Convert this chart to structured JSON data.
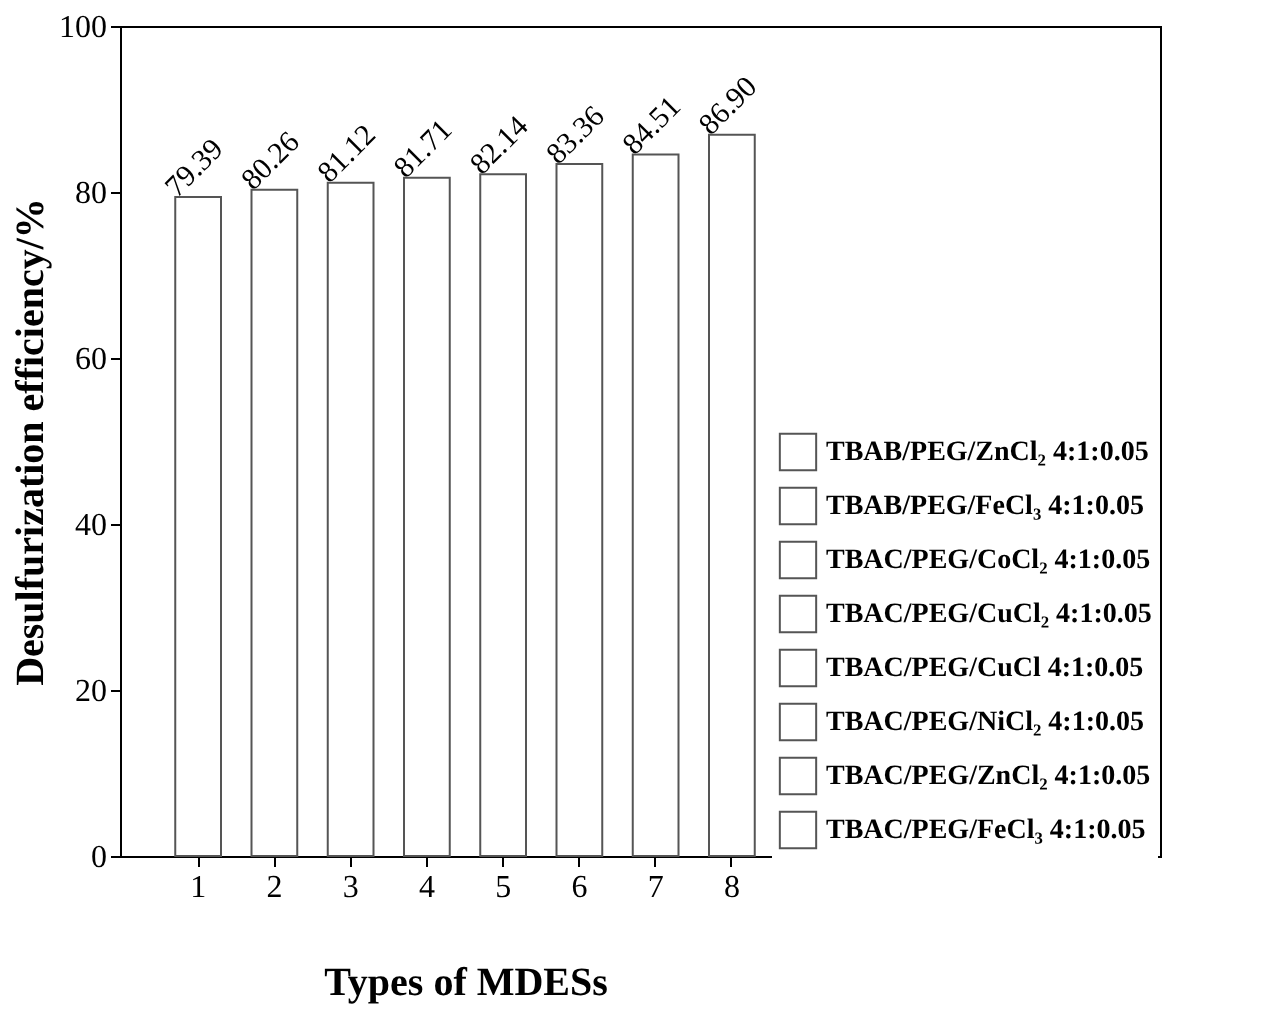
{
  "chart_data": {
    "type": "bar",
    "xlabel": "Types of MDESs",
    "ylabel": "Desulfurization efficiency/%",
    "categories": [
      "1",
      "2",
      "3",
      "4",
      "5",
      "6",
      "7",
      "8"
    ],
    "series": [
      {
        "name": "TBAB/PEG/ZnCl₂ 4:1:0.05",
        "color": "#ffffff",
        "values": [
          79.39,
          null,
          null,
          null,
          null,
          null,
          null,
          null
        ]
      },
      {
        "name": "TBAB/PEG/FeCl₃ 4:1:0.05",
        "color": "#ffffff",
        "values": [
          null,
          80.26,
          null,
          null,
          null,
          null,
          null,
          null
        ]
      },
      {
        "name": "TBAC/PEG/CoCl₂ 4:1:0.05",
        "color": "#ffffff",
        "values": [
          null,
          null,
          81.12,
          null,
          null,
          null,
          null,
          null
        ]
      },
      {
        "name": "TBAC/PEG/CuCl₂ 4:1:0.05",
        "color": "#ffffff",
        "values": [
          null,
          null,
          null,
          81.71,
          null,
          null,
          null,
          null
        ]
      },
      {
        "name": "TBAC/PEG/CuCl 4:1:0.05",
        "color": "#ffffff",
        "values": [
          null,
          null,
          null,
          null,
          82.14,
          null,
          null,
          null
        ]
      },
      {
        "name": "TBAC/PEG/NiCl₂ 4:1:0.05",
        "color": "#ffffff",
        "values": [
          null,
          null,
          null,
          null,
          null,
          83.36,
          null,
          null
        ]
      },
      {
        "name": "TBAC/PEG/ZnCl₂ 4:1:0.05",
        "color": "#ffffff",
        "values": [
          null,
          null,
          null,
          null,
          null,
          null,
          84.51,
          null
        ]
      },
      {
        "name": "TBAC/PEG/FeCl₃ 4:1:0.05",
        "color": "#ffffff",
        "values": [
          null,
          null,
          null,
          null,
          null,
          null,
          null,
          86.9
        ]
      }
    ],
    "value_labels": [
      "79.39",
      "80.26",
      "81.12",
      "81.71",
      "82.14",
      "83.36",
      "84.51",
      "86.90"
    ],
    "ylim": [
      0,
      100
    ],
    "yticks": [
      0,
      20,
      40,
      60,
      80,
      100
    ],
    "grid": false,
    "legend": "right"
  }
}
